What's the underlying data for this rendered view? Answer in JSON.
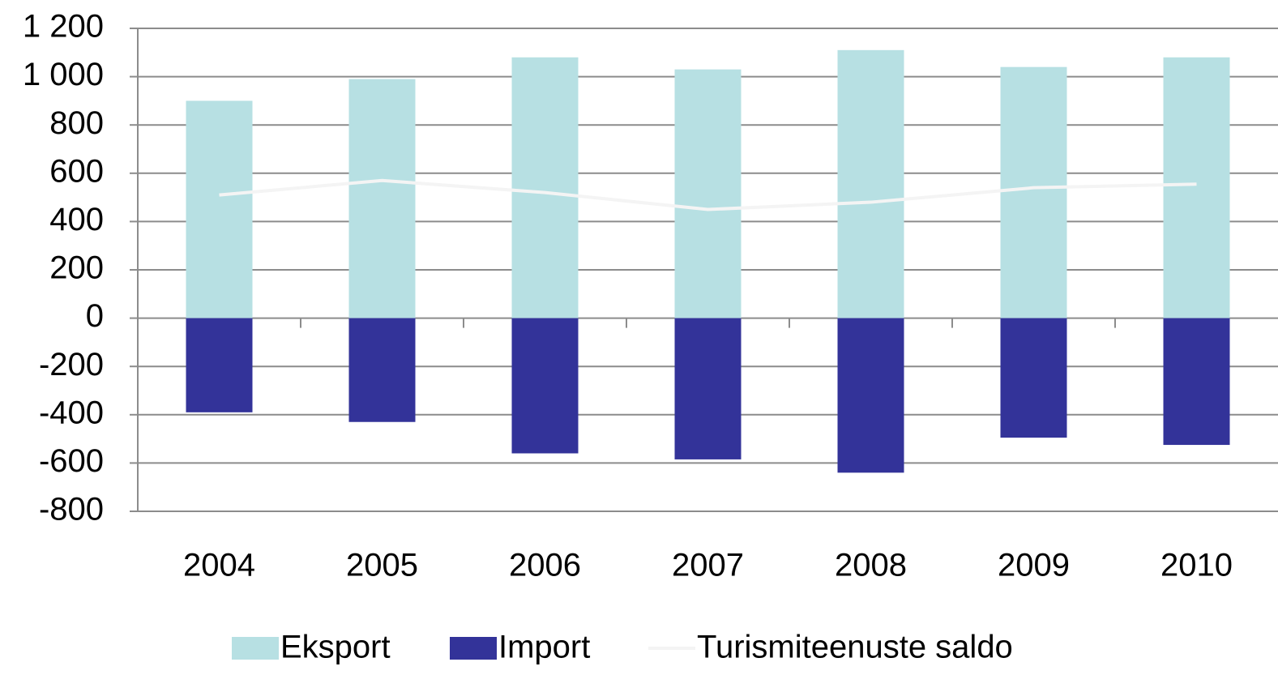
{
  "chart_data": {
    "type": "bar",
    "categories": [
      "2004",
      "2005",
      "2006",
      "2007",
      "2008",
      "2009",
      "2010"
    ],
    "series": [
      {
        "name": "Eksport",
        "color": "#b7e0e3",
        "type": "bar",
        "values": [
          900,
          990,
          1080,
          1030,
          1110,
          1040,
          1080
        ]
      },
      {
        "name": "Import",
        "color": "#333399",
        "type": "bar",
        "values": [
          -390,
          -430,
          -560,
          -585,
          -640,
          -495,
          -525
        ]
      },
      {
        "name": "Turismiteenuste saldo",
        "color": "#f4f4f4",
        "type": "line",
        "values": [
          510,
          570,
          520,
          450,
          480,
          540,
          555
        ]
      }
    ],
    "ylim": [
      -800,
      1200
    ],
    "yticks": [
      -800,
      -600,
      -400,
      -200,
      0,
      200,
      400,
      600,
      800,
      {
        "value": 1000,
        "label": "1 000"
      },
      {
        "value": 1200,
        "label": "1 200"
      }
    ],
    "grid": true,
    "legend": "bottom"
  }
}
